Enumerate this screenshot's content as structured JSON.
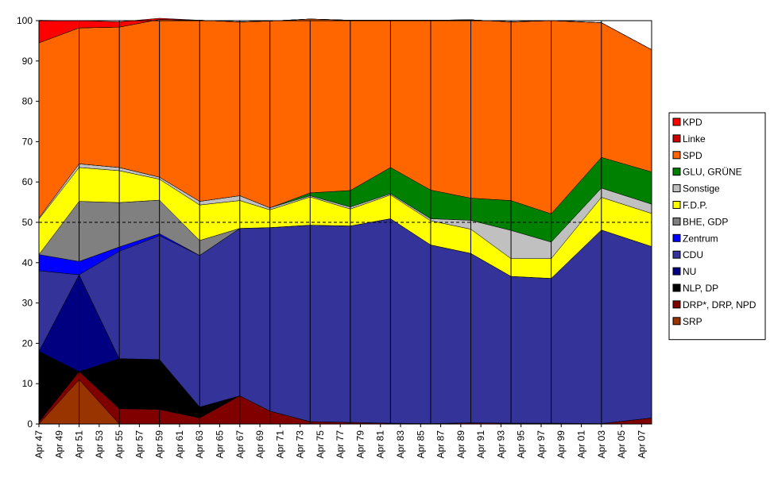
{
  "chart_data": {
    "type": "area",
    "stacked": true,
    "ylim": [
      0,
      100
    ],
    "ytick_values": [
      0,
      10,
      20,
      30,
      40,
      50,
      60,
      70,
      80,
      90,
      100
    ],
    "ytick_labels": [
      "0",
      "10",
      "20",
      "30",
      "40",
      "50",
      "60",
      "70",
      "80",
      "90",
      "100"
    ],
    "x": [
      1947,
      1951,
      1955,
      1959,
      1963,
      1967,
      1970,
      1974,
      1978,
      1982,
      1986,
      1990,
      1994,
      1998,
      2003,
      2008
    ],
    "xtick_years": [
      1947,
      1949,
      1951,
      1953,
      1955,
      1957,
      1959,
      1961,
      1963,
      1965,
      1967,
      1969,
      1971,
      1973,
      1975,
      1977,
      1979,
      1981,
      1983,
      1985,
      1987,
      1989,
      1991,
      1993,
      1995,
      1997,
      1999,
      2001,
      2003,
      2005,
      2007
    ],
    "xtick_labels": [
      "Apr 47",
      "Apr 49",
      "Apr 51",
      "Apr 53",
      "Apr 55",
      "Apr 57",
      "Apr 59",
      "Apr 61",
      "Apr 63",
      "Apr 65",
      "Apr 67",
      "Apr 69",
      "Apr 71",
      "Apr 73",
      "Apr 75",
      "Apr 77",
      "Apr 79",
      "Apr 81",
      "Apr 83",
      "Apr 85",
      "Apr 87",
      "Apr 89",
      "Apr 91",
      "Apr 93",
      "Apr 95",
      "Apr 97",
      "Apr 99",
      "Apr 01",
      "Apr 03",
      "Apr 05",
      "Apr 07"
    ],
    "reference_line": {
      "y": 50,
      "style": "dashed"
    },
    "grid": "vertical lines at election points",
    "legend_position": "right",
    "series": [
      {
        "name": "SRP",
        "color": "#993300",
        "values": [
          0,
          11.0,
          0,
          0,
          0,
          0,
          0,
          0,
          0,
          0,
          0,
          0,
          0,
          0,
          0,
          0
        ]
      },
      {
        "name": "DRP*, DRP, NPD",
        "color": "#800000",
        "values": [
          0.5,
          2.0,
          3.8,
          3.6,
          1.5,
          7.0,
          3.2,
          0.6,
          0.4,
          0.2,
          0.1,
          0.3,
          0.2,
          0.2,
          0.1,
          1.5
        ]
      },
      {
        "name": "NLP, DP",
        "color": "#000000",
        "values": [
          17.5,
          0,
          12.4,
          12.4,
          2.7,
          0,
          0,
          0,
          0,
          0,
          0,
          0,
          0,
          0,
          0,
          0
        ]
      },
      {
        "name": "NU",
        "color": "#000080",
        "values": [
          0,
          24.0,
          0,
          0,
          0,
          0,
          0,
          0,
          0,
          0,
          0,
          0,
          0,
          0,
          0,
          0
        ]
      },
      {
        "name": "CDU",
        "color": "#333399",
        "values": [
          20.0,
          0,
          26.6,
          30.7,
          37.6,
          41.5,
          45.5,
          48.7,
          48.7,
          50.7,
          44.3,
          42.0,
          36.4,
          35.9,
          48.0,
          42.5
        ]
      },
      {
        "name": "Zentrum",
        "color": "#0000FF",
        "values": [
          4.0,
          3.3,
          1.1,
          0.5,
          0,
          0,
          0,
          0,
          0,
          0,
          0,
          0,
          0,
          0,
          0,
          0
        ]
      },
      {
        "name": "BHE, GDP",
        "color": "#808080",
        "values": [
          0,
          14.9,
          11.0,
          8.3,
          3.7,
          0,
          0,
          0,
          0,
          0,
          0,
          0,
          0,
          0,
          0,
          0
        ]
      },
      {
        "name": "F.D.P.",
        "color": "#FFFF00",
        "values": [
          8.8,
          8.4,
          7.9,
          5.2,
          8.8,
          6.9,
          4.4,
          7.0,
          4.2,
          5.9,
          6.0,
          6.0,
          4.4,
          4.9,
          8.1,
          8.2
        ]
      },
      {
        "name": "Sonstige",
        "color": "#C0C0C0",
        "values": [
          0.3,
          0.9,
          0.8,
          0.5,
          0.9,
          1.2,
          0.5,
          0.3,
          0.5,
          0.3,
          0.5,
          2.2,
          7.0,
          4.1,
          2.3,
          2.3
        ]
      },
      {
        "name": "GLU, GRÜNE",
        "color": "#008000",
        "values": [
          0,
          0,
          0,
          0,
          0,
          0,
          0,
          0.7,
          4.1,
          6.5,
          7.1,
          5.5,
          7.4,
          7.0,
          7.6,
          8.0
        ]
      },
      {
        "name": "SPD",
        "color": "#FF6600",
        "values": [
          43.4,
          33.7,
          34.8,
          39.1,
          44.9,
          43.1,
          46.3,
          43.1,
          42.2,
          36.5,
          42.1,
          44.2,
          44.3,
          47.9,
          33.4,
          30.3
        ]
      },
      {
        "name": "Linke",
        "color": "#CC0000",
        "values": [
          0,
          0,
          0,
          0,
          0,
          0,
          0,
          0,
          0,
          0,
          0,
          0,
          0,
          0,
          0,
          0
        ]
      },
      {
        "name": "KPD",
        "color": "#FF0000",
        "values": [
          5.6,
          1.8,
          1.3,
          0.3,
          0,
          0,
          0,
          0,
          0,
          0,
          0,
          0,
          0,
          0,
          0,
          0
        ]
      }
    ]
  }
}
